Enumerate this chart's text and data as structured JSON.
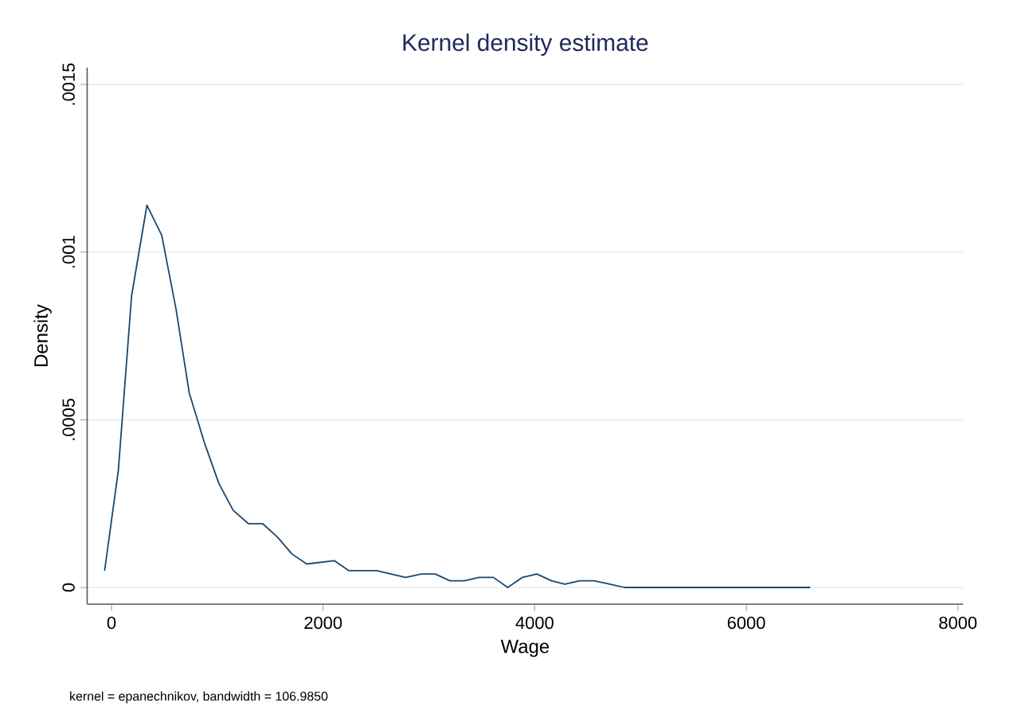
{
  "chart_data": {
    "type": "line",
    "title": "Kernel density estimate",
    "xlabel": "Wage",
    "ylabel": "Density",
    "annotations": [
      "kernel = epanechnikov, bandwidth = 106.9850"
    ],
    "x": [
      -65,
      65,
      190,
      335,
      475,
      610,
      735,
      880,
      1015,
      1150,
      1295,
      1430,
      1570,
      1705,
      1845,
      2105,
      2245,
      2505,
      2780,
      2930,
      3060,
      3200,
      3335,
      3475,
      3610,
      3745,
      3885,
      4020,
      4160,
      4285,
      4425,
      4560,
      4710,
      4850,
      4990,
      5240,
      5400,
      5660,
      5800,
      5920,
      6200,
      6500,
      6605
    ],
    "series": [
      {
        "color": "#1a476f",
        "values": [
          5e-05,
          0.00035,
          0.00087,
          0.00114,
          0.00105,
          0.00083,
          0.00058,
          0.00043,
          0.00031,
          0.00023,
          0.00019,
          0.00019,
          0.00015,
          0.0001,
          7e-05,
          8e-05,
          5e-05,
          5e-05,
          3e-05,
          4e-05,
          4e-05,
          2e-05,
          2e-05,
          3e-05,
          3e-05,
          0,
          3e-05,
          4e-05,
          2e-05,
          1e-05,
          2e-05,
          2e-05,
          1e-05,
          0,
          0,
          0,
          0,
          0,
          0,
          0,
          0,
          0,
          0
        ]
      }
    ],
    "xlim": [
      -230,
      8050
    ],
    "ylim": [
      -5e-05,
      0.00155
    ],
    "xticks": [
      0,
      2000,
      4000,
      6000,
      8000
    ],
    "yticks": [
      0,
      {
        "value": 0.0005,
        "label": ".0005"
      },
      {
        "value": 0.001,
        "label": ".001"
      },
      {
        "value": 0.0015,
        "label": ".0015"
      }
    ],
    "grid": "y",
    "marker": "none",
    "line_style": "solid"
  }
}
